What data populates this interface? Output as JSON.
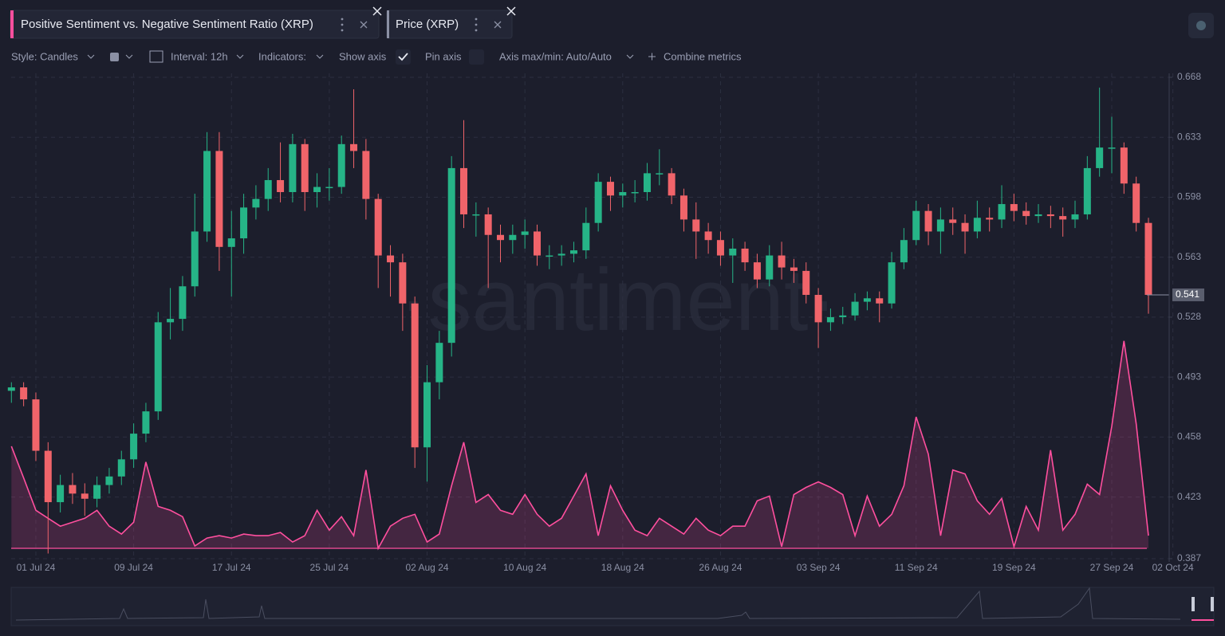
{
  "toolbar": {
    "style": "Style: Candles",
    "interval": "Interval: 12h",
    "indicators": "Indicators:",
    "show_axis": "Show axis",
    "pin_axis": "Pin axis",
    "axis_range": "Axis max/min: Auto/Auto",
    "combine": "Combine metrics"
  },
  "watermark": "·santiment·",
  "chart_data": {
    "type": "candlestick",
    "categories": [
      null,
      null,
      "01 Jul 24",
      null,
      null,
      null,
      null,
      null,
      null,
      null,
      "09 Jul 24",
      null,
      null,
      null,
      null,
      null,
      null,
      null,
      "17 Jul 24",
      null,
      null,
      null,
      null,
      null,
      null,
      null,
      "25 Jul 24",
      null,
      null,
      null,
      null,
      null,
      null,
      null,
      "02 Aug 24",
      null,
      null,
      null,
      null,
      null,
      null,
      null,
      "10 Aug 24",
      null,
      null,
      null,
      null,
      null,
      null,
      null,
      "18 Aug 24",
      null,
      null,
      null,
      null,
      null,
      null,
      null,
      "26 Aug 24",
      null,
      null,
      null,
      null,
      null,
      null,
      null,
      "03 Sep 24",
      null,
      null,
      null,
      null,
      null,
      null,
      null,
      "11 Sep 24",
      null,
      null,
      null,
      null,
      null,
      null,
      null,
      "19 Sep 24",
      null,
      null,
      null,
      null,
      null,
      null,
      null,
      "27 Sep 24",
      null,
      null,
      null,
      null,
      "02 Oct 24"
    ],
    "ylim": [
      0.387,
      0.668
    ],
    "yticks": [
      0.387,
      0.423,
      0.458,
      0.493,
      0.528,
      0.563,
      0.598,
      0.633,
      0.668
    ],
    "y2lim": [
      0,
      3
    ],
    "grid": true,
    "last_value": 0.541,
    "series": [
      {
        "name": "Positive Sentiment vs. Negative Sentiment Ratio (XRP)",
        "type": "area",
        "axis": "y2",
        "color": "#ff4f9e",
        "values": [
          1.29,
          0.89,
          0.48,
          0.38,
          0.28,
          0.33,
          0.38,
          0.48,
          0.28,
          0.18,
          0.33,
          1.09,
          0.53,
          0.48,
          0.4,
          0.03,
          0.13,
          0.16,
          0.13,
          0.18,
          0.16,
          0.16,
          0.2,
          0.08,
          0.16,
          0.48,
          0.23,
          0.4,
          0.16,
          0.99,
          0,
          0.28,
          0.38,
          0.43,
          0.08,
          0.18,
          0.79,
          1.34,
          0.58,
          0.68,
          0.48,
          0.43,
          0.68,
          0.43,
          0.28,
          0.38,
          0.66,
          0.94,
          0.16,
          0.79,
          0.48,
          0.23,
          0.16,
          0.38,
          0.28,
          0.18,
          0.38,
          0.23,
          0.16,
          0.28,
          0.28,
          0.6,
          0.66,
          0.02,
          0.68,
          0.77,
          0.84,
          0.77,
          0.68,
          0.16,
          0.66,
          0.28,
          0.43,
          0.79,
          1.66,
          1.19,
          0.16,
          0.99,
          0.94,
          0.6,
          0.43,
          0.63,
          0.02,
          0.53,
          0.23,
          1.24,
          0.23,
          0.43,
          0.81,
          0.68,
          1.54,
          2.62,
          1.57,
          0.16,
          null,
          null
        ]
      },
      {
        "name": "Price (XRP)",
        "type": "candlestick",
        "up_color": "#26b487",
        "down_color": "#f0646a",
        "open": [
          0.485,
          0.487,
          0.48,
          0.45,
          0.42,
          0.43,
          0.425,
          0.422,
          0.43,
          0.435,
          0.445,
          0.46,
          0.473,
          0.525,
          0.527,
          0.546,
          0.578,
          0.625,
          0.569,
          0.574,
          0.592,
          0.597,
          0.608,
          0.601,
          0.629,
          0.601,
          0.604,
          0.604,
          0.629,
          0.625,
          0.597,
          0.564,
          0.56,
          0.536,
          0.452,
          0.49,
          0.513,
          0.615,
          0.588,
          0.588,
          0.576,
          0.573,
          0.576,
          0.578,
          0.564,
          0.564,
          0.565,
          0.567,
          0.583,
          0.607,
          0.599,
          0.601,
          0.601,
          0.612,
          0.612,
          0.599,
          0.585,
          0.578,
          0.573,
          0.564,
          0.568,
          0.56,
          0.55,
          0.564,
          0.557,
          0.555,
          0.541,
          0.525,
          0.528,
          0.529,
          0.537,
          0.539,
          0.536,
          0.56,
          0.573,
          0.59,
          0.578,
          0.585,
          0.583,
          0.578,
          0.586,
          0.585,
          0.594,
          0.59,
          0.587,
          0.588,
          0.587,
          0.585,
          0.588,
          0.615,
          0.627,
          0.627,
          0.606,
          0.583,
          null,
          null
        ],
        "high": [
          0.49,
          0.49,
          0.484,
          0.455,
          0.436,
          0.437,
          0.431,
          0.435,
          0.44,
          0.45,
          0.466,
          0.478,
          0.531,
          0.545,
          0.552,
          0.6,
          0.636,
          0.636,
          0.59,
          0.6,
          0.605,
          0.615,
          0.63,
          0.635,
          0.632,
          0.612,
          0.615,
          0.634,
          0.661,
          0.632,
          0.6,
          0.57,
          0.565,
          0.54,
          0.5,
          0.52,
          0.622,
          0.643,
          0.595,
          0.592,
          0.582,
          0.582,
          0.585,
          0.582,
          0.57,
          0.57,
          0.572,
          0.592,
          0.612,
          0.61,
          0.606,
          0.608,
          0.618,
          0.626,
          0.615,
          0.603,
          0.595,
          0.583,
          0.578,
          0.574,
          0.572,
          0.565,
          0.57,
          0.572,
          0.562,
          0.56,
          0.545,
          0.533,
          0.534,
          0.542,
          0.543,
          0.543,
          0.566,
          0.58,
          0.596,
          0.594,
          0.592,
          0.592,
          0.588,
          0.596,
          0.592,
          0.605,
          0.6,
          0.595,
          0.594,
          0.593,
          0.592,
          0.596,
          0.622,
          0.662,
          0.645,
          0.63,
          0.61,
          0.586,
          null,
          null
        ],
        "low": [
          0.478,
          0.476,
          0.444,
          0.39,
          0.414,
          0.419,
          0.412,
          0.417,
          0.425,
          0.43,
          0.44,
          0.455,
          0.468,
          0.515,
          0.52,
          0.54,
          0.572,
          0.555,
          0.54,
          0.565,
          0.585,
          0.59,
          0.595,
          0.595,
          0.59,
          0.592,
          0.596,
          0.6,
          0.615,
          0.585,
          0.545,
          0.54,
          0.52,
          0.44,
          0.432,
          0.48,
          0.505,
          0.58,
          0.575,
          0.545,
          0.56,
          0.565,
          0.568,
          0.558,
          0.556,
          0.558,
          0.56,
          0.562,
          0.578,
          0.59,
          0.592,
          0.595,
          0.596,
          0.605,
          0.594,
          0.578,
          0.562,
          0.565,
          0.558,
          0.548,
          0.555,
          0.545,
          0.546,
          0.55,
          0.548,
          0.536,
          0.51,
          0.52,
          0.524,
          0.526,
          0.532,
          0.525,
          0.533,
          0.556,
          0.57,
          0.57,
          0.565,
          0.576,
          0.565,
          0.574,
          0.578,
          0.58,
          0.584,
          0.582,
          0.583,
          0.58,
          0.575,
          0.58,
          0.585,
          0.61,
          0.612,
          0.6,
          0.578,
          0.53,
          null,
          null
        ],
        "close": [
          0.487,
          0.48,
          0.45,
          0.42,
          0.43,
          0.425,
          0.422,
          0.43,
          0.435,
          0.445,
          0.46,
          0.473,
          0.525,
          0.527,
          0.546,
          0.578,
          0.625,
          0.569,
          0.574,
          0.592,
          0.597,
          0.608,
          0.601,
          0.629,
          0.601,
          0.604,
          0.604,
          0.629,
          0.625,
          0.597,
          0.564,
          0.56,
          0.536,
          0.452,
          0.49,
          0.513,
          0.615,
          0.588,
          0.588,
          0.576,
          0.573,
          0.576,
          0.578,
          0.564,
          0.564,
          0.565,
          0.567,
          0.583,
          0.607,
          0.599,
          0.601,
          0.601,
          0.612,
          0.612,
          0.599,
          0.585,
          0.578,
          0.573,
          0.564,
          0.568,
          0.56,
          0.55,
          0.564,
          0.557,
          0.555,
          0.541,
          0.525,
          0.528,
          0.529,
          0.537,
          0.539,
          0.536,
          0.56,
          0.573,
          0.59,
          0.578,
          0.585,
          0.583,
          0.578,
          0.586,
          0.585,
          0.594,
          0.59,
          0.587,
          0.588,
          0.587,
          0.585,
          0.588,
          0.615,
          0.627,
          0.627,
          0.606,
          0.583,
          0.541,
          null,
          null
        ]
      }
    ]
  }
}
